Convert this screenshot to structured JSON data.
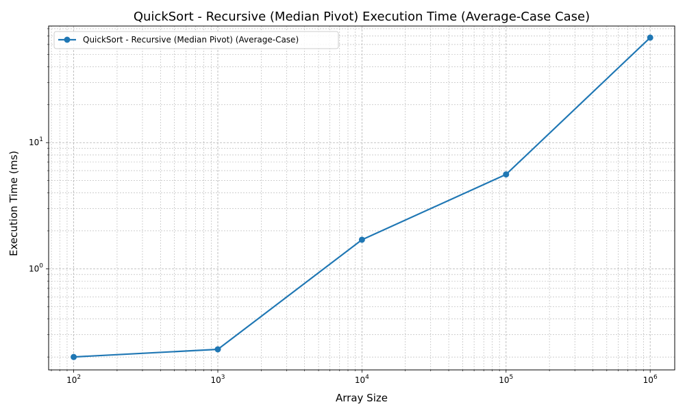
{
  "chart_data": {
    "type": "line",
    "title": "QuickSort - Recursive (Median Pivot) Execution Time (Average-Case Case)",
    "xlabel": "Array Size",
    "ylabel": "Execution Time (ms)",
    "x_scale": "log",
    "y_scale": "log",
    "xlim": [
      67,
      1480000
    ],
    "ylim": [
      0.158,
      84
    ],
    "grid": true,
    "legend_position": "top-left",
    "x_ticks": [
      {
        "base": "10",
        "exp": "2",
        "value": 100
      },
      {
        "base": "10",
        "exp": "3",
        "value": 1000
      },
      {
        "base": "10",
        "exp": "4",
        "value": 10000
      },
      {
        "base": "10",
        "exp": "5",
        "value": 100000
      },
      {
        "base": "10",
        "exp": "6",
        "value": 1000000
      }
    ],
    "y_ticks": [
      {
        "base": "10",
        "exp": "0",
        "value": 1
      },
      {
        "base": "10",
        "exp": "1",
        "value": 10
      }
    ],
    "series": [
      {
        "name": "QuickSort - Recursive (Median Pivot) (Average-Case)",
        "color": "#1f77b4",
        "x": [
          100,
          1000,
          10000,
          100000,
          1000000
        ],
        "y": [
          0.2,
          0.23,
          1.7,
          5.6,
          68
        ]
      }
    ]
  }
}
